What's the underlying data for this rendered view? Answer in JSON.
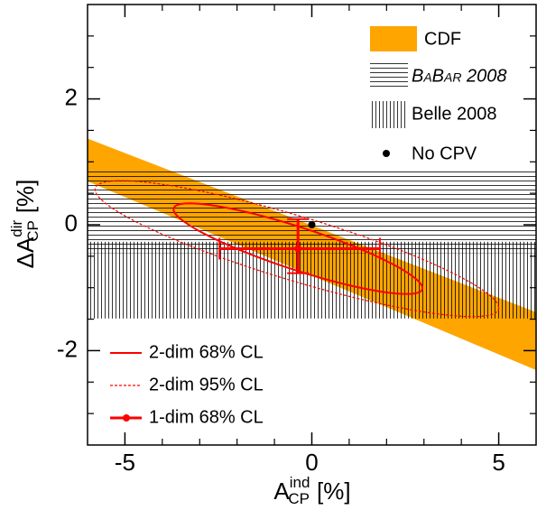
{
  "chart_data": {
    "type": "contour",
    "xlim": [
      -6,
      6
    ],
    "ylim": [
      -3.5,
      3.5
    ],
    "xticks": [
      -5,
      0,
      5
    ],
    "yticks": [
      -2,
      0,
      2
    ],
    "xminor": [
      -4,
      -3,
      -2,
      -1,
      1,
      2,
      3,
      4
    ],
    "yminor": [
      -3,
      -2.5,
      -1.5,
      -1,
      -0.5,
      0.5,
      1,
      1.5,
      2.5,
      3
    ],
    "x_label": {
      "main": "A",
      "sup": "ind",
      "sub": "CP",
      "unit": "[%]"
    },
    "y_label": {
      "main": "ΔA",
      "sup": "dir",
      "sub": "CP",
      "unit": "[%]"
    },
    "band": {
      "name": "CDF",
      "color": "#ffa500",
      "x": [
        -6,
        6
      ],
      "upper": [
        1.37,
        -1.39
      ],
      "lower": [
        0.69,
        -2.31
      ]
    },
    "regions": [
      {
        "name": "BaBar 2008",
        "orientation": "horizontal",
        "ylim": [
          -0.45,
          0.87
        ]
      },
      {
        "name": "Belle 2008",
        "orientation": "vertical",
        "ylim": [
          -1.49,
          -0.27
        ]
      }
    ],
    "point": {
      "name": "No CPV",
      "x": 0,
      "y": 0
    },
    "contours": [
      {
        "name": "2-dim 68% CL",
        "style": "solid",
        "center": [
          -0.37,
          -0.38
        ],
        "x_halfwidth": 3.33,
        "y_halfheight": 0.72,
        "correlation": -0.87
      },
      {
        "name": "2-dim 95% CL",
        "style": "dashed",
        "center": [
          -0.4,
          -0.38
        ],
        "x_halfwidth": 5.4,
        "y_halfheight": 1.08,
        "correlation": -0.87
      }
    ],
    "measurement": {
      "name": "1-dim 68% CL",
      "x": -0.37,
      "y": -0.38,
      "x_low": -2.47,
      "x_high": 1.82,
      "y_low": -0.77,
      "y_high": 0.09
    },
    "color": "#ff0000"
  }
}
